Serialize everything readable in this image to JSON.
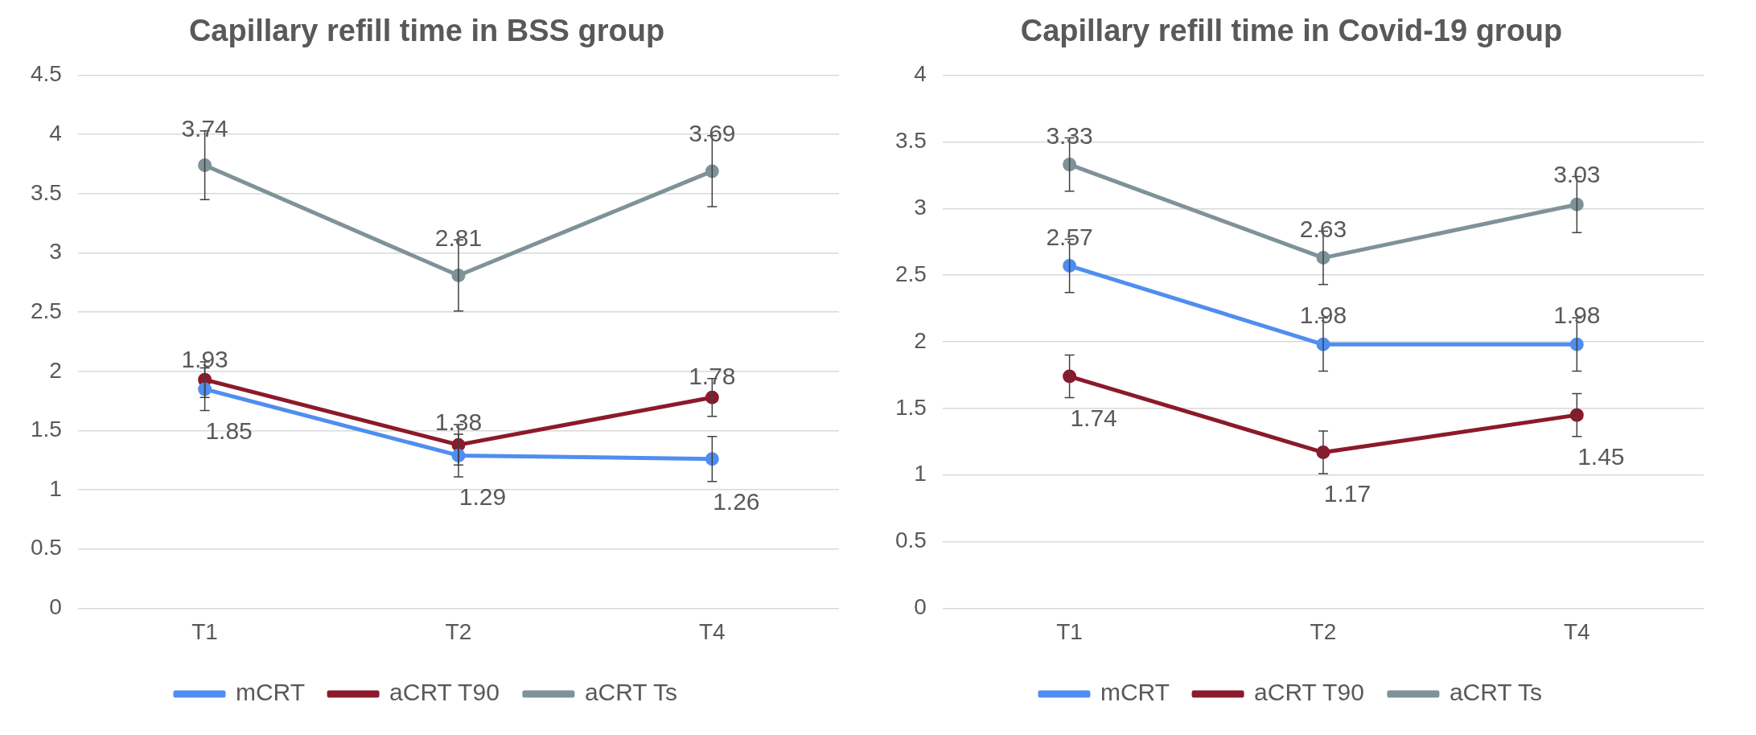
{
  "chart_data": [
    {
      "type": "line",
      "title": "Capillary refill time in BSS group",
      "categories": [
        "T1",
        "T2",
        "T4"
      ],
      "ylim": [
        0,
        4.5
      ],
      "yticks": [
        0,
        0.5,
        1,
        1.5,
        2,
        2.5,
        3,
        3.5,
        4,
        4.5
      ],
      "grid": "y",
      "legend": "bottom",
      "marker": "circle",
      "data_labels": true,
      "series": [
        {
          "name": "mCRT",
          "color": "#4f8ef0",
          "values": [
            1.85,
            1.29,
            1.26
          ],
          "errors": [
            0.18,
            0.18,
            0.19
          ]
        },
        {
          "name": "aCRT T90",
          "color": "#8b1a2b",
          "values": [
            1.93,
            1.38,
            1.78
          ],
          "errors": [
            0.15,
            0.17,
            0.16
          ]
        },
        {
          "name": "aCRT Ts",
          "color": "#7f9299",
          "values": [
            3.74,
            2.81,
            3.69
          ],
          "errors": [
            0.29,
            0.3,
            0.3
          ]
        }
      ]
    },
    {
      "type": "line",
      "title": "Capillary refill time in Covid-19 group",
      "categories": [
        "T1",
        "T2",
        "T4"
      ],
      "ylim": [
        0,
        4
      ],
      "yticks": [
        0,
        0.5,
        1,
        1.5,
        2,
        2.5,
        3,
        3.5,
        4
      ],
      "grid": "y",
      "legend": "bottom",
      "marker": "circle",
      "data_labels": true,
      "series": [
        {
          "name": "mCRT",
          "color": "#4f8ef0",
          "values": [
            2.57,
            1.98,
            1.98
          ],
          "errors": [
            0.2,
            0.2,
            0.2
          ]
        },
        {
          "name": "aCRT T90",
          "color": "#8b1a2b",
          "values": [
            1.74,
            1.17,
            1.45
          ],
          "errors": [
            0.16,
            0.16,
            0.16
          ]
        },
        {
          "name": "aCRT Ts",
          "color": "#7f9299",
          "values": [
            3.33,
            2.63,
            3.03
          ],
          "errors": [
            0.2,
            0.2,
            0.21
          ]
        }
      ]
    }
  ]
}
